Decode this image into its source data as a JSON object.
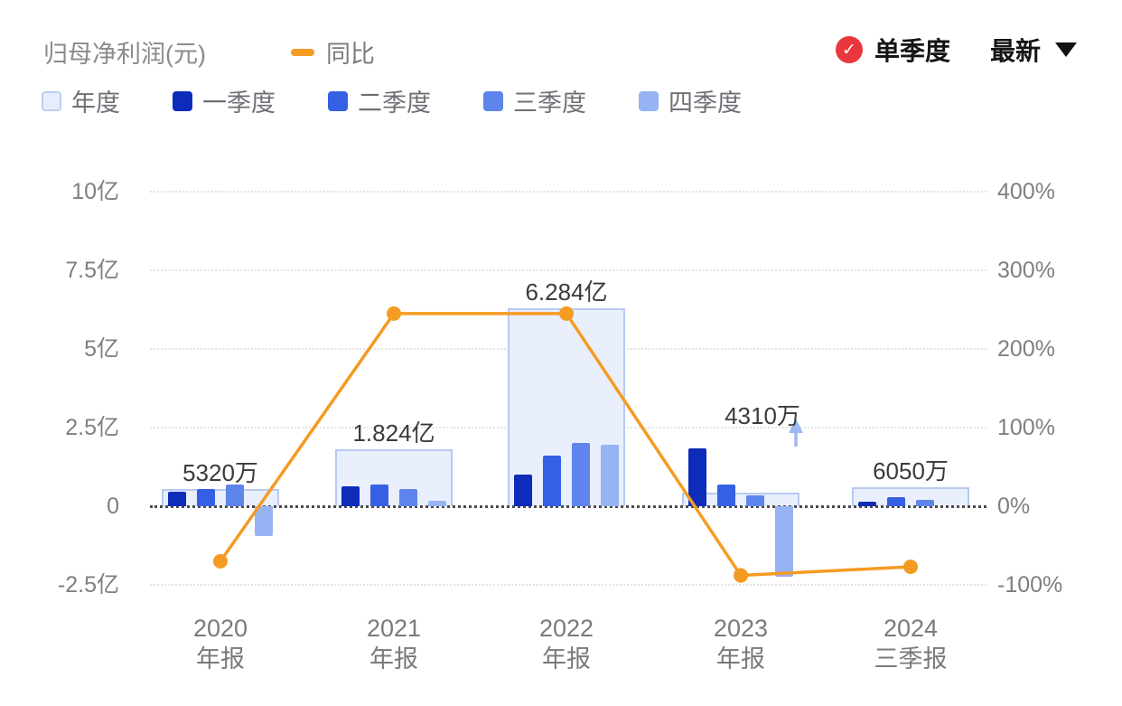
{
  "header": {
    "title": "归母净利润(元)",
    "line_legend": "同比",
    "mode_label": "单季度",
    "latest_label": "最新",
    "badge_color": "#e8383d",
    "accent_orange": "#f59b22"
  },
  "legend": {
    "items": [
      {
        "key": "annual",
        "label": "年度",
        "color": "#e7edfc",
        "border": "#bdccf2"
      },
      {
        "key": "q1",
        "label": "一季度",
        "color": "#0d2cba"
      },
      {
        "key": "q2",
        "label": "二季度",
        "color": "#3560e4"
      },
      {
        "key": "q3",
        "label": "三季度",
        "color": "#5e85ec"
      },
      {
        "key": "q4",
        "label": "四季度",
        "color": "#96b3f4"
      }
    ]
  },
  "chart_data": {
    "type": "bar",
    "title": "归母净利润(元)",
    "categories": [
      "2020 年报",
      "2021 年报",
      "2022 年报",
      "2023 年报",
      "2024 三季报"
    ],
    "x_labels": [
      [
        "2020",
        "年报"
      ],
      [
        "2021",
        "年报"
      ],
      [
        "2022",
        "年报"
      ],
      [
        "2023",
        "年报"
      ],
      [
        "2024",
        "三季报"
      ]
    ],
    "annual_series": {
      "name": "年度",
      "unit": "亿",
      "values": [
        0.532,
        1.824,
        6.284,
        0.431,
        0.605
      ],
      "labels": [
        "5320万",
        "1.824亿",
        "6.284亿",
        "4310万",
        "6050万"
      ]
    },
    "quarter_series": [
      {
        "name": "一季度",
        "color": "#0d2cba",
        "values": [
          0.45,
          0.62,
          1.0,
          1.85,
          0.15
        ]
      },
      {
        "name": "二季度",
        "color": "#3560e4",
        "values": [
          0.55,
          0.7,
          1.6,
          0.7,
          0.3
        ]
      },
      {
        "name": "三季度",
        "color": "#5e85ec",
        "values": [
          0.7,
          0.55,
          2.0,
          0.35,
          0.2
        ]
      },
      {
        "name": "四季度",
        "color": "#96b3f4",
        "values": [
          -0.95,
          0.17,
          1.95,
          -2.25,
          null
        ]
      }
    ],
    "line_series": {
      "name": "同比",
      "color": "#f59b22",
      "unit": "%",
      "values": [
        -70,
        245,
        245,
        -88,
        -77
      ]
    },
    "left_axis": {
      "unit": "亿",
      "ticks": [
        {
          "label": "10亿",
          "value": 10
        },
        {
          "label": "7.5亿",
          "value": 7.5
        },
        {
          "label": "5亿",
          "value": 5
        },
        {
          "label": "2.5亿",
          "value": 2.5
        },
        {
          "label": "0",
          "value": 0
        },
        {
          "label": "-2.5亿",
          "value": -2.5
        }
      ]
    },
    "right_axis": {
      "unit": "%",
      "ticks": [
        {
          "label": "400%",
          "value": 400
        },
        {
          "label": "300%",
          "value": 300
        },
        {
          "label": "200%",
          "value": 200
        },
        {
          "label": "100%",
          "value": 100
        },
        {
          "label": "0%",
          "value": 0
        },
        {
          "label": "-100%",
          "value": -100
        }
      ]
    },
    "zero_line": true,
    "annotation": {
      "index": 3,
      "type": "up-arrow",
      "color": "#9db9f3"
    }
  }
}
